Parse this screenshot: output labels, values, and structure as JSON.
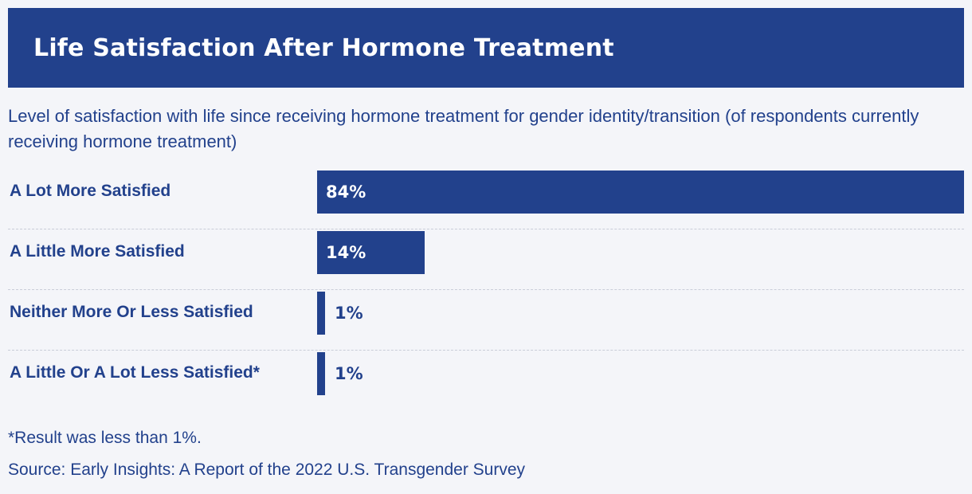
{
  "colors": {
    "accent": "#22418c",
    "background": "#f4f5f9"
  },
  "chart_data": {
    "type": "bar",
    "orientation": "horizontal",
    "title": "Life Satisfaction After Hormone Treatment",
    "subtitle": "Level of satisfaction with life since receiving hormone treatment for gender identity/transition (of respondents currently receiving hormone treatment)",
    "categories": [
      "A Lot More Satisfied",
      "A Little More Satisfied",
      "Neither More Or Less Satisfied",
      "A Little Or A Lot Less Satisfied*"
    ],
    "values": [
      84,
      14,
      1,
      1
    ],
    "value_labels": [
      "84%",
      "14%",
      "1%",
      "1%"
    ],
    "xlim": [
      0,
      84
    ],
    "grid": false,
    "footnote": "*Result was less than 1%.",
    "source": "Source: Early Insights: A Report of the 2022 U.S. Transgender Survey"
  }
}
